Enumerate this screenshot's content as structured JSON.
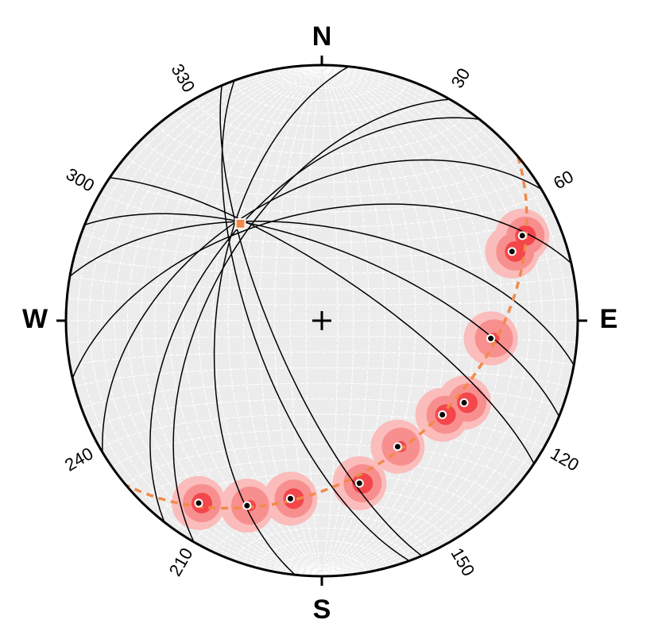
{
  "chart_data": {
    "type": "stereonet",
    "projection": "equal-area",
    "hemisphere": "lower",
    "cardinals": {
      "N": "N",
      "E": "E",
      "S": "S",
      "W": "W"
    },
    "azimuth_ticks": [
      30,
      60,
      120,
      150,
      210,
      240,
      300,
      330
    ],
    "poles": {
      "color": "#000000",
      "trend": [
        67,
        70,
        96,
        120,
        128,
        149,
        167,
        190,
        202,
        214
      ],
      "plunge": [
        16,
        22,
        34,
        36,
        40,
        42,
        35,
        30,
        23,
        15
      ]
    },
    "planes": {
      "color": "#000000",
      "dip_direction": [
        247,
        250,
        276,
        300,
        308,
        329,
        347,
        10,
        22,
        34
      ],
      "dip": [
        74,
        68,
        56,
        54,
        50,
        48,
        55,
        60,
        67,
        75
      ]
    },
    "girdle": {
      "color": "#f08a4b",
      "dip_direction": 140,
      "dip": 41
    },
    "beta": {
      "color": "#f08a4b",
      "trend": 320,
      "plunge": 49
    },
    "density_colors": [
      "#fbbcbc",
      "#f88f8f",
      "#f3474b"
    ]
  }
}
